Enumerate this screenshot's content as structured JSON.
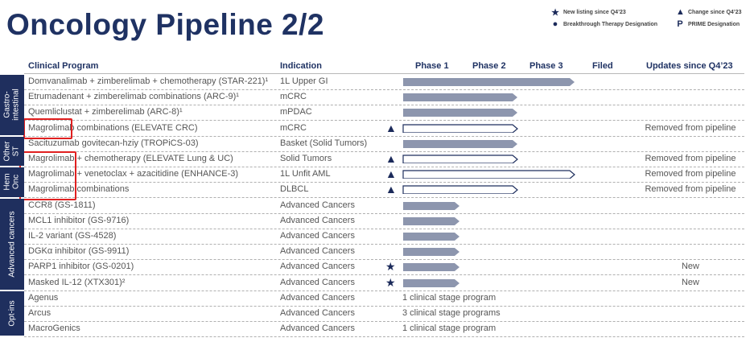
{
  "title": "Oncology Pipeline 2/2",
  "legend": [
    {
      "icon": "star-icon",
      "glyph": "★",
      "label": "New listing since Q4’23"
    },
    {
      "icon": "triangle-icon",
      "glyph": "▲",
      "label": "Change since Q4’23"
    },
    {
      "icon": "circle-icon",
      "glyph": "●",
      "label": "Breakthrough Therapy Designation"
    },
    {
      "icon": "prime-p-icon",
      "glyph": "P",
      "label": "PRIME Designation"
    }
  ],
  "headers": {
    "program": "Clinical Program",
    "indication": "Indication",
    "phase1": "Phase 1",
    "phase2": "Phase 2",
    "phase3": "Phase 3",
    "filed": "Filed",
    "updates": "Updates since Q4’23"
  },
  "categories": [
    {
      "label": "Gastro-\nintestinal",
      "rows": 4
    },
    {
      "label": "Other\nST",
      "rows": 2
    },
    {
      "label": "Hem\nOnc",
      "rows": 2
    },
    {
      "label": "Advanced cancers",
      "rows": 6
    },
    {
      "label": "Opt-ins",
      "rows": 3
    }
  ],
  "colors": {
    "navy": "#1f2f5e",
    "bar": "#8d96ae",
    "highlight": "#e02020"
  },
  "rows": [
    {
      "program": "Domvanalimab + zimberelimab + chemotherapy (STAR-221)¹",
      "indication": "1L Upper GI",
      "phase": 3,
      "style": "filled",
      "marker": "",
      "update": ""
    },
    {
      "program": "Etrumadenant + zimberelimab combinations (ARC-9)¹",
      "indication": "mCRC",
      "phase": 2,
      "style": "filled",
      "marker": "",
      "update": ""
    },
    {
      "program": "Quemliclustat + zimberelimab (ARC-8)¹",
      "indication": "mPDAC",
      "phase": 2,
      "style": "filled",
      "marker": "",
      "update": ""
    },
    {
      "program": "Magrolimab combinations (ELEVATE CRC)",
      "indication": "mCRC",
      "phase": 2,
      "style": "outline",
      "marker": "triangle",
      "update": "Removed from pipeline"
    },
    {
      "program": "Sacituzumab govitecan-hziy (TROPiCS-03)",
      "indication": "Basket (Solid Tumors)",
      "phase": 2,
      "style": "filled",
      "marker": "",
      "update": ""
    },
    {
      "program": "Magrolimab + chemotherapy (ELEVATE Lung & UC)",
      "indication": "Solid Tumors",
      "phase": 2,
      "style": "outline",
      "marker": "triangle",
      "update": "Removed from pipeline"
    },
    {
      "program": "Magrolimab + venetoclax + azacitidine (ENHANCE-3)",
      "indication": "1L Unfit AML",
      "phase": 3,
      "style": "outline",
      "marker": "triangle",
      "update": "Removed from pipeline"
    },
    {
      "program": "Magrolimab combinations",
      "indication": "DLBCL",
      "phase": 2,
      "style": "outline",
      "marker": "triangle",
      "update": "Removed from pipeline"
    },
    {
      "program": "CCR8 (GS-1811)",
      "indication": "Advanced Cancers",
      "phase": 1,
      "style": "filled",
      "marker": "",
      "update": ""
    },
    {
      "program": "MCL1 inhibitor (GS-9716)",
      "indication": "Advanced Cancers",
      "phase": 1,
      "style": "filled",
      "marker": "",
      "update": ""
    },
    {
      "program": "IL-2 variant (GS-4528)",
      "indication": "Advanced Cancers",
      "phase": 1,
      "style": "filled",
      "marker": "",
      "update": ""
    },
    {
      "program": "DGKα inhibitor (GS-9911)",
      "indication": "Advanced Cancers",
      "phase": 1,
      "style": "filled",
      "marker": "",
      "update": ""
    },
    {
      "program": "PARP1 inhibitor (GS-0201)",
      "indication": "Advanced Cancers",
      "phase": 1,
      "style": "filled",
      "marker": "star",
      "update": "New"
    },
    {
      "program": "Masked IL-12 (XTX301)²",
      "indication": "Advanced Cancers",
      "phase": 1,
      "style": "filled",
      "marker": "star",
      "update": "New"
    },
    {
      "program": "Agenus",
      "indication": "Advanced Cancers",
      "phase": 0,
      "stage_text": "1 clinical stage program",
      "marker": "",
      "update": ""
    },
    {
      "program": "Arcus",
      "indication": "Advanced Cancers",
      "phase": 0,
      "stage_text": "3 clinical stage programs",
      "marker": "",
      "update": ""
    },
    {
      "program": "MacroGenics",
      "indication": "Advanced Cancers",
      "phase": 0,
      "stage_text": "1 clinical stage program",
      "marker": "",
      "update": ""
    }
  ]
}
